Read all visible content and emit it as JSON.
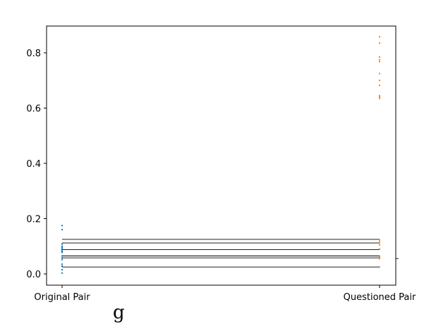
{
  "chart_data": {
    "type": "scatter",
    "categories": [
      "Original Pair",
      "Questioned Pair"
    ],
    "ylim": [
      -0.04,
      0.9
    ],
    "yticks": [
      0.0,
      0.2,
      0.4,
      0.6,
      0.8
    ],
    "ytick_labels": [
      "0.0",
      "0.2",
      "0.4",
      "0.6",
      "0.8"
    ],
    "grid": false,
    "series": [
      {
        "color": "#1f77b4",
        "category": "Original Pair",
        "values": [
          0.175,
          0.16,
          0.108,
          0.1,
          0.095,
          0.09,
          0.086,
          0.082,
          0.08,
          0.078,
          0.065,
          0.058,
          0.052,
          0.035,
          0.028,
          0.015,
          0.003
        ]
      },
      {
        "color": "#ff7f0e",
        "category": "Questioned Pair",
        "values": [
          0.858,
          0.835,
          0.785,
          0.775,
          0.768,
          0.725,
          0.7,
          0.682,
          0.645,
          0.64,
          0.635,
          0.122,
          0.115,
          0.105,
          0.09,
          0.065,
          0.06,
          0.055,
          0.025
        ]
      }
    ],
    "connecting_lines": [
      0.125,
      0.112,
      0.088,
      0.065,
      0.058,
      0.025
    ],
    "line_color": "#000000"
  },
  "overlay_text": "g"
}
